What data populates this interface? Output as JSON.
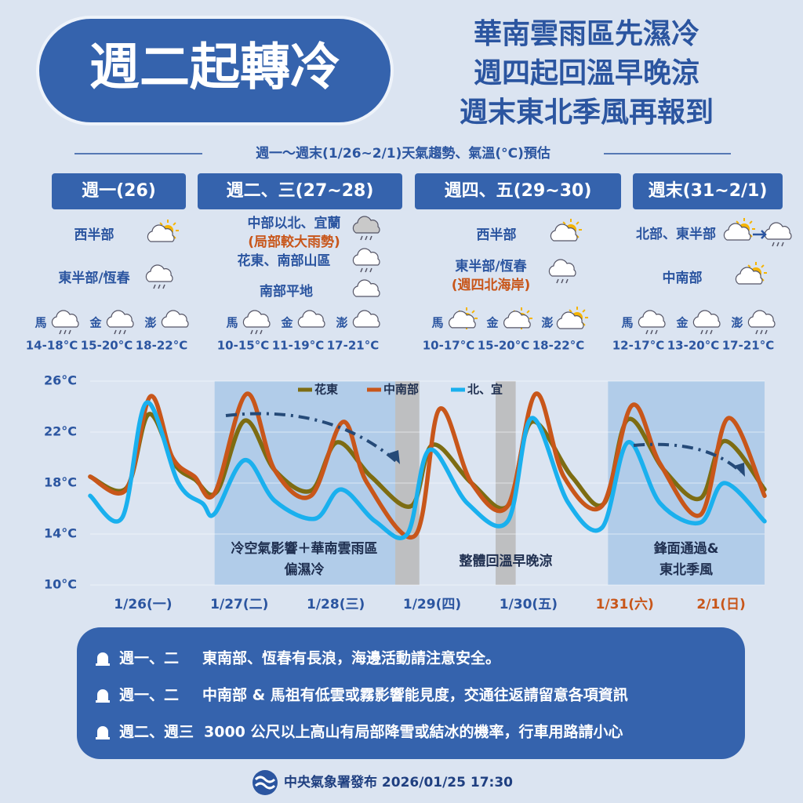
{
  "header": {
    "title": "週二起轉冷",
    "subtitle": [
      "華南雲雨區先濕冷",
      "週四起回溫早晚涼",
      "週末東北季風再報到"
    ]
  },
  "forecast": {
    "heading": "週一～週末(1/26~2/1)天氣趨勢、氣溫(°C)預估",
    "panels": [
      {
        "title": "週一(26)",
        "regions": [
          {
            "lines": [
              "西半部"
            ]
          },
          {
            "lines": [
              "東半部/恆春"
            ]
          }
        ],
        "islands": [
          {
            "name": "馬",
            "temp": "14-18°C"
          },
          {
            "name": "金",
            "temp": "15-20°C"
          },
          {
            "name": "澎",
            "temp": "18-22°C"
          }
        ]
      },
      {
        "title": "週二、三(27~28)",
        "regions": [
          {
            "lines": [
              "中部以北、宜蘭",
              "(局部較大雨勢)"
            ]
          },
          {
            "lines": [
              "花東、南部山區"
            ]
          },
          {
            "lines": [
              "南部平地"
            ]
          }
        ],
        "islands": [
          {
            "name": "馬",
            "temp": "10-15°C"
          },
          {
            "name": "金",
            "temp": "11-19°C"
          },
          {
            "name": "澎",
            "temp": "17-21°C"
          }
        ]
      },
      {
        "title": "週四、五(29~30)",
        "regions": [
          {
            "lines": [
              "西半部"
            ]
          },
          {
            "lines": [
              "東半部/恆春",
              "(週四北海岸)"
            ]
          }
        ],
        "islands": [
          {
            "name": "馬",
            "temp": "10-17°C"
          },
          {
            "name": "金",
            "temp": "15-20°C"
          },
          {
            "name": "澎",
            "temp": "18-22°C"
          }
        ]
      },
      {
        "title": "週末(31~2/1)",
        "regions": [
          {
            "lines": [
              "北部、東半部"
            ]
          },
          {
            "lines": [
              "中南部"
            ]
          }
        ],
        "islands": [
          {
            "name": "馬",
            "temp": "12-17°C"
          },
          {
            "name": "金",
            "temp": "13-20°C"
          },
          {
            "name": "澎",
            "temp": "17-21°C"
          }
        ]
      }
    ]
  },
  "chart_data": {
    "type": "line",
    "legend": "top",
    "grid": true,
    "xlim": [
      0,
      168
    ],
    "ylim": [
      10,
      26
    ],
    "yticks": [
      {
        "value": 10,
        "label": "10°C"
      },
      {
        "value": 14,
        "label": "14°C"
      },
      {
        "value": 18,
        "label": "18°C"
      },
      {
        "value": 22,
        "label": "22°C"
      },
      {
        "value": 26,
        "label": "26°C"
      }
    ],
    "xticks": [
      {
        "value": 12,
        "label": "1/26(一)"
      },
      {
        "value": 36,
        "label": "1/27(二)"
      },
      {
        "value": 60,
        "label": "1/28(三)"
      },
      {
        "value": 84,
        "label": "1/29(四)"
      },
      {
        "value": 108,
        "label": "1/30(五)"
      },
      {
        "value": 132,
        "label": "1/31(六)"
      },
      {
        "value": 156,
        "label": "2/1(日)"
      }
    ],
    "xtick_colors": [
      "#2b55a0",
      "#2b55a0",
      "#2b55a0",
      "#2b55a0",
      "#2b55a0",
      "#c8561a",
      "#c8561a"
    ],
    "shaded_ranges": [
      {
        "xlim": [
          31,
          76
        ],
        "color": "#a9c8e8"
      },
      {
        "xlim": [
          129,
          168
        ],
        "color": "#a9c8e8"
      },
      {
        "xlim": [
          76,
          82
        ],
        "color": "#b8b8b8"
      },
      {
        "xlim": [
          101,
          106
        ],
        "color": "#b8b8b8"
      }
    ],
    "annotations": [
      {
        "lines": [
          "冷空氣影響＋華南雲雨區",
          "偏濕冷"
        ]
      },
      {
        "lines": [
          "整體回溫早晚涼"
        ]
      },
      {
        "lines": [
          "鋒面通過&",
          "東北季風"
        ]
      }
    ],
    "series": [
      {
        "name": "花東",
        "color": "#7d6c12",
        "x": [
          0,
          9,
          14.6,
          21,
          26,
          31.5,
          38.5,
          46,
          55,
          61.5,
          70,
          80,
          85.3,
          95,
          104,
          110,
          120,
          128,
          134,
          143,
          152,
          158,
          168
        ],
        "values": [
          18.5,
          17.6,
          23.4,
          19.5,
          18.3,
          17.3,
          22.9,
          19,
          17.4,
          21.2,
          18.5,
          16.2,
          21,
          18,
          16.2,
          22.8,
          18.5,
          16.4,
          23,
          19,
          16.8,
          21.3,
          17.5
        ]
      },
      {
        "name": "中南部",
        "color": "#c8561a",
        "x": [
          0,
          9,
          15,
          20.5,
          26,
          31,
          39,
          46,
          55,
          63,
          69,
          81,
          87,
          95,
          104,
          111,
          118,
          127.5,
          135,
          142,
          152,
          159,
          168
        ],
        "values": [
          18.5,
          17.5,
          24.8,
          20,
          18.5,
          17.2,
          25,
          19,
          17,
          22.8,
          18,
          13.9,
          23.8,
          18,
          16.2,
          25,
          18.5,
          16.2,
          24.1,
          19.5,
          15.5,
          23.1,
          17
        ]
      },
      {
        "name": "北、宜",
        "color": "#1ab0ee",
        "x": [
          0,
          8,
          14,
          22,
          28,
          31,
          38.5,
          46,
          56,
          62.5,
          71,
          79,
          84.5,
          94,
          104,
          110,
          119,
          127.5,
          134,
          142,
          152,
          158,
          168
        ],
        "values": [
          17,
          15.3,
          24.3,
          18,
          16.4,
          15.6,
          19.8,
          16.6,
          15.2,
          17.5,
          15,
          14,
          20.6,
          16.4,
          15,
          23.1,
          16.5,
          14.5,
          21.2,
          16.4,
          14.9,
          18,
          15
        ]
      }
    ]
  },
  "notices": [
    {
      "when": "週一、二",
      "text": "東南部、恆春有長浪，海邊活動請注意安全。"
    },
    {
      "when": "週一、二",
      "text": "中南部 & 馬祖有低雲或霧影響能見度，交通往返請留意各項資訊"
    },
    {
      "when": "週二、週三",
      "text": "3000 公尺以上高山有局部降雪或結冰的機率，行車用路請小心"
    }
  ],
  "footer": "中央氣象署發布 2026/01/25 17:30"
}
